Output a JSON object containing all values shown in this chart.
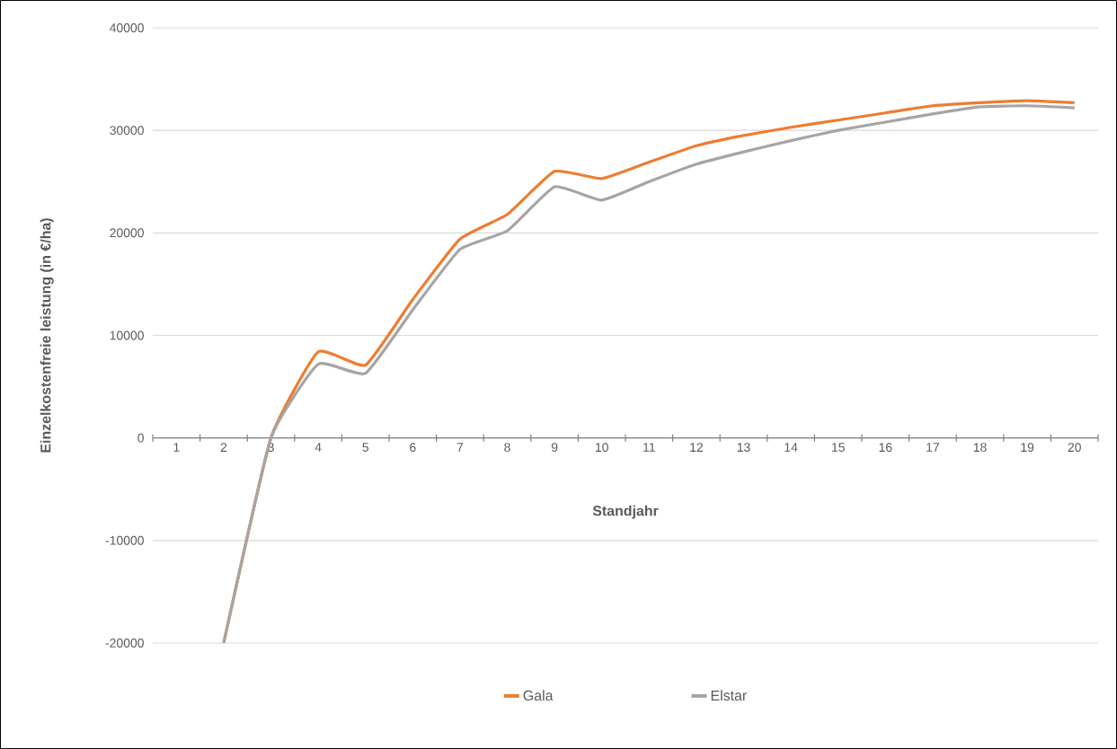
{
  "chart_data": {
    "type": "line",
    "xlabel": "Standjahr",
    "ylabel": "Einzelkostenfreie leistung (in €/ha)",
    "categories": [
      "1",
      "2",
      "3",
      "4",
      "5",
      "6",
      "7",
      "8",
      "9",
      "10",
      "11",
      "12",
      "13",
      "14",
      "15",
      "16",
      "17",
      "18",
      "19",
      "20"
    ],
    "series": [
      {
        "name": "Gala",
        "color": "#ed7d31",
        "values": [
          null,
          -20000,
          0,
          8400,
          7100,
          13500,
          19400,
          21800,
          26000,
          25300,
          26900,
          28500,
          29500,
          30300,
          31000,
          31700,
          32400,
          32700,
          32900,
          32700
        ]
      },
      {
        "name": "Elstar",
        "color": "#a5a5a5",
        "values": [
          null,
          -20000,
          0,
          7200,
          6300,
          12500,
          18400,
          20200,
          24500,
          23200,
          25000,
          26700,
          27900,
          29000,
          30000,
          30800,
          31600,
          32300,
          32400,
          32200
        ]
      }
    ],
    "ylim": [
      -20000,
      40000
    ],
    "yticks": [
      -20000,
      -10000,
      0,
      10000,
      20000,
      30000,
      40000
    ],
    "grid": "y",
    "legend": "bottom"
  }
}
